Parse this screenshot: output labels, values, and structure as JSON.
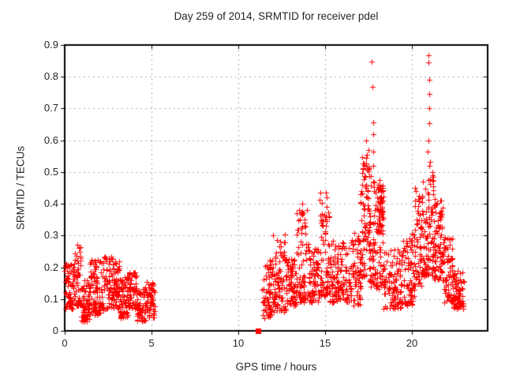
{
  "figure": {
    "title": "Day 259 of 2014, SRMTID for receiver pdel",
    "xlabel": "GPS time / hours",
    "ylabel": "SRMTID / TECUs"
  },
  "colors": {
    "marker": "#ff0000",
    "grid": "#ababab",
    "border": "#000000",
    "background": "#ffffff",
    "text": "#262626"
  },
  "chart_data": {
    "type": "scatter",
    "title": "Day 259 of 2014, SRMTID for receiver pdel",
    "xlabel": "GPS time / hours",
    "ylabel": "SRMTID / TECUs",
    "xlim": [
      0,
      24.36
    ],
    "ylim": [
      0,
      0.9
    ],
    "x_ticks": [
      {
        "value": 0,
        "label": "0"
      },
      {
        "value": 5,
        "label": "5"
      },
      {
        "value": 10,
        "label": "10"
      },
      {
        "value": 15,
        "label": "15"
      },
      {
        "value": 20,
        "label": "20"
      }
    ],
    "y_ticks": [
      {
        "value": 0.0,
        "label": "0"
      },
      {
        "value": 0.1,
        "label": "0.1"
      },
      {
        "value": 0.2,
        "label": "0.2"
      },
      {
        "value": 0.3,
        "label": "0.3"
      },
      {
        "value": 0.4,
        "label": "0.4"
      },
      {
        "value": 0.5,
        "label": "0.5"
      },
      {
        "value": 0.6,
        "label": "0.6"
      },
      {
        "value": 0.7,
        "label": "0.7"
      },
      {
        "value": 0.8,
        "label": "0.8"
      },
      {
        "value": 0.9,
        "label": "0.9"
      }
    ],
    "grid": "dashed-both-axes",
    "legend": "none",
    "marker": "plus",
    "marker_size_px": 7,
    "marker_color": "#ff0000",
    "square_point": {
      "x": 11.15,
      "y": 0.0,
      "marker": "filled-square"
    },
    "spike_ladders": [
      {
        "x": 17.73,
        "ys": [
          0.848,
          0.768,
          0.657,
          0.62,
          0.565,
          0.52
        ]
      },
      {
        "x": 17.38,
        "ys": [
          0.6,
          0.555
        ]
      },
      {
        "x": 20.95,
        "ys": [
          0.868,
          0.845,
          0.79,
          0.745,
          0.7,
          0.655,
          0.6,
          0.565,
          0.52,
          0.475,
          0.43,
          0.385
        ]
      }
    ],
    "envelope_segments_comment": "each segment: [x_start_h, x_end_h, n_points, y_min, y_max, skew_exponent] — y = y_min + (y_max-y_min)*u^exp, exp>1 biases toward y_min like the dense low band in the plot",
    "envelope_segments": [
      [
        0.0,
        0.55,
        70,
        0.07,
        0.22,
        1.3
      ],
      [
        0.55,
        0.95,
        50,
        0.08,
        0.285,
        1.5
      ],
      [
        0.95,
        1.45,
        60,
        0.03,
        0.16,
        1.2
      ],
      [
        1.45,
        2.25,
        95,
        0.05,
        0.225,
        1.3
      ],
      [
        2.25,
        3.15,
        110,
        0.07,
        0.235,
        1.3
      ],
      [
        3.15,
        3.65,
        60,
        0.04,
        0.18,
        1.3
      ],
      [
        3.65,
        4.15,
        60,
        0.07,
        0.185,
        1.2
      ],
      [
        4.15,
        4.65,
        55,
        0.03,
        0.14,
        1.2
      ],
      [
        4.65,
        5.2,
        60,
        0.04,
        0.155,
        1.2
      ],
      [
        11.35,
        11.95,
        65,
        0.04,
        0.225,
        1.4
      ],
      [
        11.95,
        12.75,
        90,
        0.06,
        0.305,
        1.5
      ],
      [
        12.75,
        13.35,
        70,
        0.08,
        0.23,
        1.3
      ],
      [
        13.35,
        14.05,
        80,
        0.09,
        0.4,
        1.8
      ],
      [
        14.05,
        14.65,
        70,
        0.09,
        0.26,
        1.4
      ],
      [
        14.65,
        15.25,
        75,
        0.11,
        0.435,
        1.8
      ],
      [
        15.25,
        16.45,
        120,
        0.09,
        0.285,
        1.4
      ],
      [
        16.45,
        17.05,
        70,
        0.08,
        0.31,
        1.4
      ],
      [
        17.05,
        17.55,
        85,
        0.17,
        0.575,
        1.3
      ],
      [
        17.55,
        17.95,
        55,
        0.14,
        0.5,
        1.5
      ],
      [
        17.95,
        18.35,
        70,
        0.3,
        0.475,
        1.0
      ],
      [
        17.95,
        18.35,
        25,
        0.12,
        0.28,
        1.2
      ],
      [
        18.35,
        19.35,
        95,
        0.07,
        0.26,
        1.4
      ],
      [
        19.35,
        20.15,
        85,
        0.08,
        0.31,
        1.5
      ],
      [
        20.15,
        20.55,
        55,
        0.14,
        0.465,
        1.5
      ],
      [
        20.55,
        21.25,
        95,
        0.17,
        0.555,
        1.6
      ],
      [
        21.25,
        21.75,
        75,
        0.16,
        0.42,
        1.4
      ],
      [
        21.75,
        22.35,
        75,
        0.09,
        0.3,
        1.5
      ],
      [
        22.35,
        23.0,
        80,
        0.07,
        0.19,
        1.2
      ]
    ],
    "seed": 20140259
  }
}
